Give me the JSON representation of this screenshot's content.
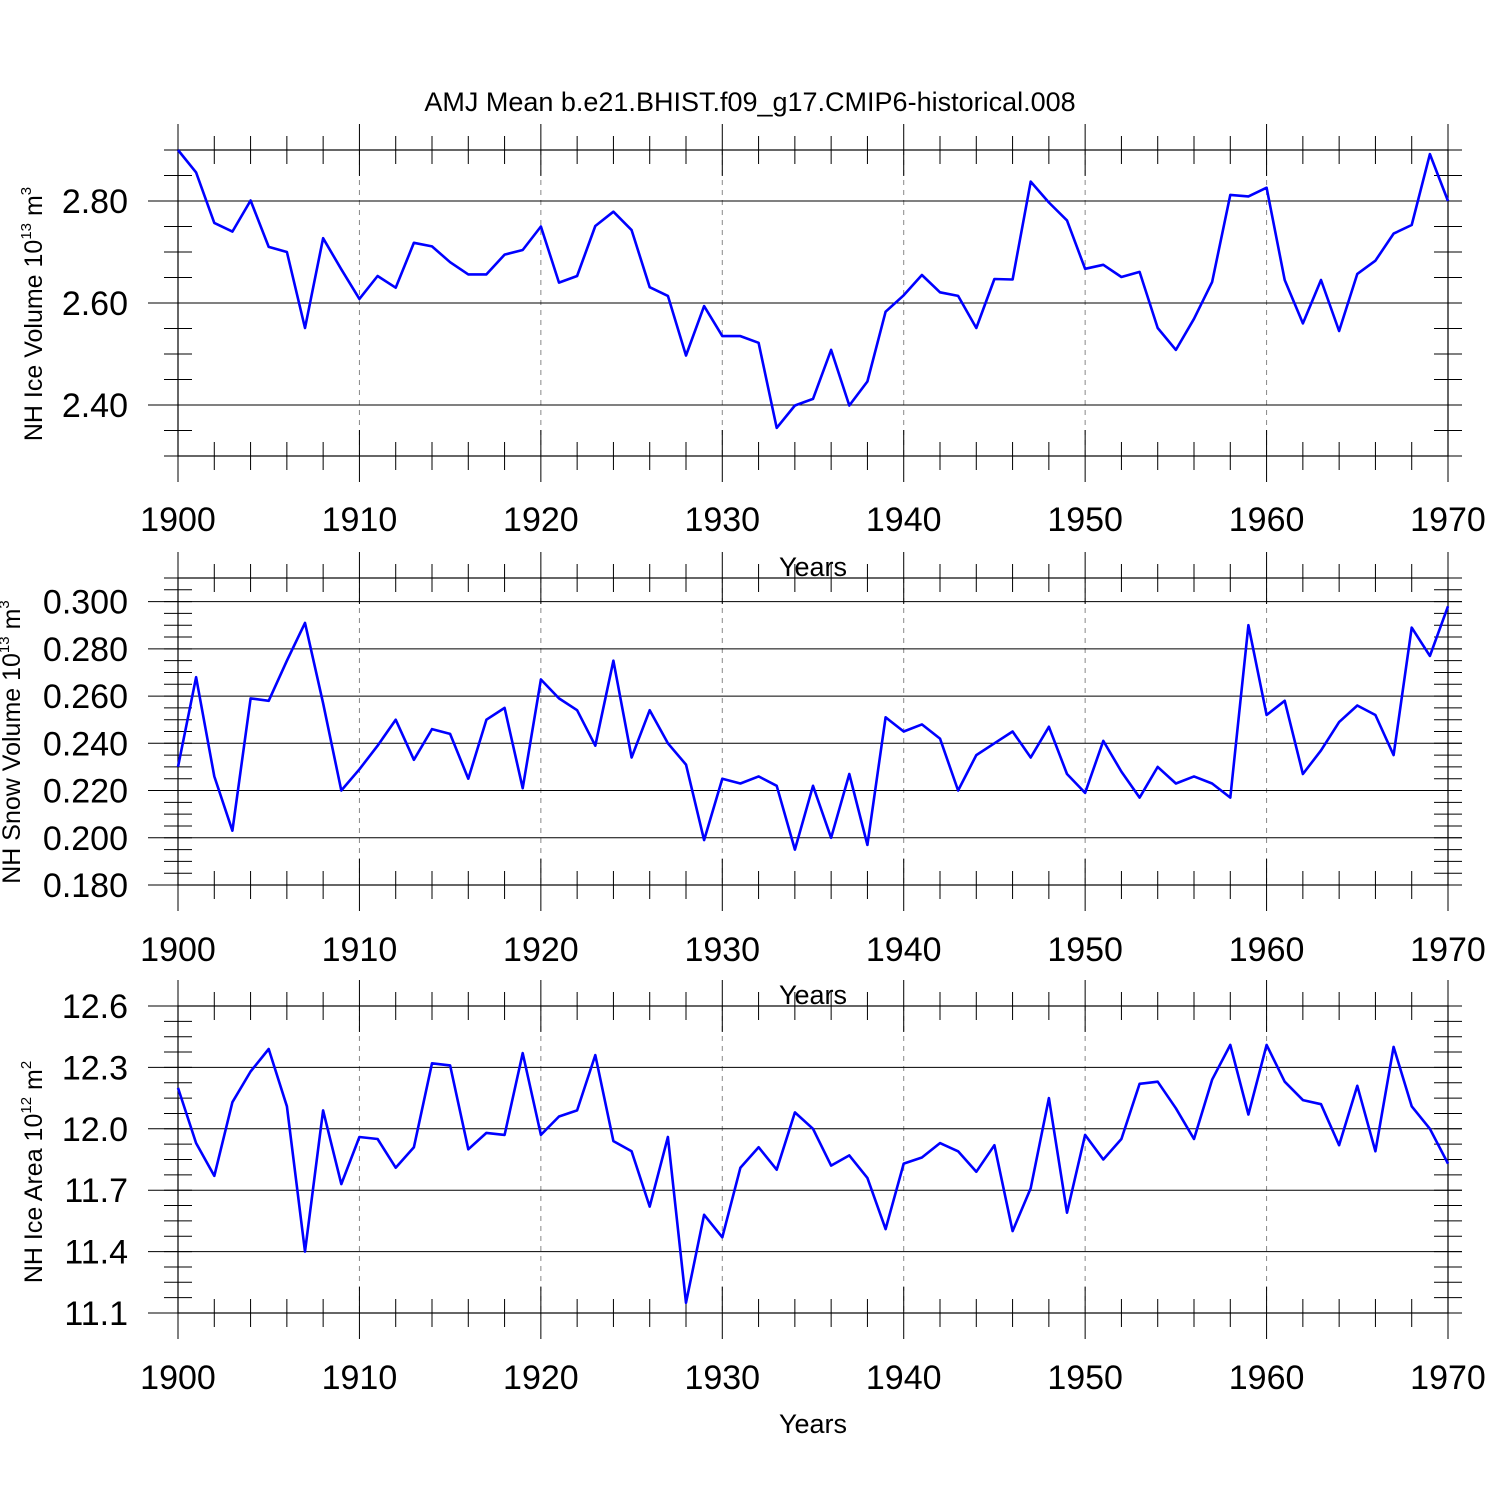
{
  "title": "AMJ Mean b.e21.BHIST.f09_g17.CMIP6-historical.008",
  "chart_data": [
    {
      "type": "line",
      "name": "ice-volume",
      "ylabel": "NH Ice Volume 10",
      "ylabel_exp": "13",
      "ylabel_unit": " m",
      "ylabel_unit_exp": "3",
      "xlabel": "Years",
      "xlim": [
        1900,
        1970
      ],
      "ylim": [
        2.3,
        2.9
      ],
      "grid": true,
      "xticks": [
        1900,
        1910,
        1920,
        1930,
        1940,
        1950,
        1960,
        1970
      ],
      "yticks": [
        "2.40",
        "2.60",
        "2.80"
      ],
      "ytick_values": [
        2.4,
        2.6,
        2.8
      ],
      "yminor_step": 0.05,
      "x_start": 1900,
      "values": [
        2.9,
        2.856,
        2.757,
        2.74,
        2.801,
        2.71,
        2.7,
        2.551,
        2.727,
        2.666,
        2.608,
        2.653,
        2.63,
        2.718,
        2.711,
        2.68,
        2.656,
        2.656,
        2.695,
        2.704,
        2.75,
        2.64,
        2.653,
        2.751,
        2.779,
        2.743,
        2.631,
        2.614,
        2.497,
        2.594,
        2.535,
        2.535,
        2.522,
        2.355,
        2.399,
        2.412,
        2.508,
        2.399,
        2.446,
        2.583,
        2.615,
        2.655,
        2.621,
        2.614,
        2.551,
        2.647,
        2.646,
        2.838,
        2.797,
        2.762,
        2.667,
        2.675,
        2.651,
        2.661,
        2.551,
        2.508,
        2.569,
        2.641,
        2.812,
        2.809,
        2.826,
        2.645,
        2.56,
        2.645,
        2.545,
        2.657,
        2.683,
        2.736,
        2.753,
        2.892,
        2.8
      ]
    },
    {
      "type": "line",
      "name": "snow-volume",
      "ylabel": "NH Snow Volume 10",
      "ylabel_exp": "13",
      "ylabel_unit": " m",
      "ylabel_unit_exp": "3",
      "xlabel": "Years",
      "xlim": [
        1900,
        1970
      ],
      "ylim": [
        0.18,
        0.31
      ],
      "grid": true,
      "xticks": [
        1900,
        1910,
        1920,
        1930,
        1940,
        1950,
        1960,
        1970
      ],
      "yticks": [
        "0.180",
        "0.200",
        "0.220",
        "0.240",
        "0.260",
        "0.280",
        "0.300"
      ],
      "ytick_values": [
        0.18,
        0.2,
        0.22,
        0.24,
        0.26,
        0.28,
        0.3
      ],
      "yminor_step": 0.005,
      "x_start": 1900,
      "values": [
        0.23,
        0.268,
        0.226,
        0.203,
        0.259,
        0.258,
        0.275,
        0.291,
        0.257,
        0.22,
        0.229,
        0.239,
        0.25,
        0.233,
        0.246,
        0.244,
        0.225,
        0.25,
        0.255,
        0.221,
        0.267,
        0.259,
        0.254,
        0.239,
        0.275,
        0.234,
        0.254,
        0.24,
        0.231,
        0.199,
        0.225,
        0.223,
        0.226,
        0.222,
        0.195,
        0.222,
        0.2,
        0.227,
        0.197,
        0.251,
        0.245,
        0.248,
        0.242,
        0.22,
        0.235,
        0.24,
        0.245,
        0.234,
        0.247,
        0.227,
        0.219,
        0.241,
        0.228,
        0.217,
        0.23,
        0.223,
        0.226,
        0.223,
        0.217,
        0.29,
        0.252,
        0.258,
        0.227,
        0.237,
        0.249,
        0.256,
        0.252,
        0.235,
        0.289,
        0.277,
        0.298
      ]
    },
    {
      "type": "line",
      "name": "ice-area",
      "ylabel": "NH Ice Area 10",
      "ylabel_exp": "12",
      "ylabel_unit": " m",
      "ylabel_unit_exp": "2",
      "xlabel": "Years",
      "xlim": [
        1900,
        1970
      ],
      "ylim": [
        11.1,
        12.6
      ],
      "grid": true,
      "xticks": [
        1900,
        1910,
        1920,
        1930,
        1940,
        1950,
        1960,
        1970
      ],
      "yticks": [
        "11.1",
        "11.4",
        "11.7",
        "12.0",
        "12.3",
        "12.6"
      ],
      "ytick_values": [
        11.1,
        11.4,
        11.7,
        12.0,
        12.3,
        12.6
      ],
      "yminor_step": 0.075,
      "x_start": 1900,
      "values": [
        12.2,
        11.93,
        11.77,
        12.13,
        12.28,
        12.39,
        12.11,
        11.4,
        12.09,
        11.73,
        11.96,
        11.95,
        11.81,
        11.91,
        12.32,
        12.31,
        11.9,
        11.98,
        11.97,
        12.37,
        11.97,
        12.06,
        12.09,
        12.36,
        11.94,
        11.89,
        11.62,
        11.96,
        11.15,
        11.58,
        11.47,
        11.81,
        11.91,
        11.8,
        12.08,
        12.0,
        11.82,
        11.87,
        11.76,
        11.51,
        11.83,
        11.86,
        11.93,
        11.89,
        11.79,
        11.92,
        11.5,
        11.71,
        12.15,
        11.59,
        11.97,
        11.85,
        11.95,
        12.22,
        12.23,
        12.1,
        11.95,
        12.24,
        12.41,
        12.07,
        12.41,
        12.23,
        12.14,
        12.12,
        11.92,
        12.21,
        11.89,
        12.4,
        12.11,
        12.0,
        11.83
      ]
    }
  ]
}
